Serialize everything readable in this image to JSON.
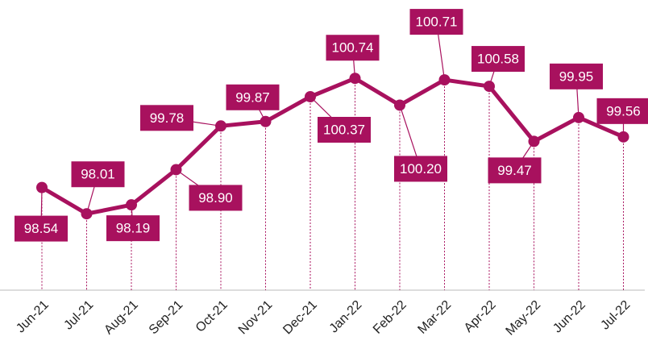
{
  "chart_data": {
    "type": "line",
    "categories": [
      "Jun-21",
      "Jul-21",
      "Aug-21",
      "Sep-21",
      "Oct-21",
      "Nov-21",
      "Dec-21",
      "Jan-22",
      "Feb-22",
      "Mar-22",
      "Apr-22",
      "May-22",
      "Jun-22",
      "Jul-22"
    ],
    "series": [
      {
        "color": "#a8115e",
        "values": [
          98.54,
          98.01,
          98.19,
          98.9,
          99.78,
          99.87,
          100.37,
          100.74,
          100.2,
          100.71,
          100.58,
          99.47,
          99.95,
          99.56
        ],
        "value_labels": [
          "98.54",
          "98.01",
          "98.19",
          "98.90",
          "99.78",
          "99.87",
          "100.37",
          "100.74",
          "100.20",
          "100.71",
          "100.58",
          "99.47",
          "99.95",
          "99.56"
        ]
      }
    ],
    "ylim": [
      96.47,
      102.32
    ]
  }
}
